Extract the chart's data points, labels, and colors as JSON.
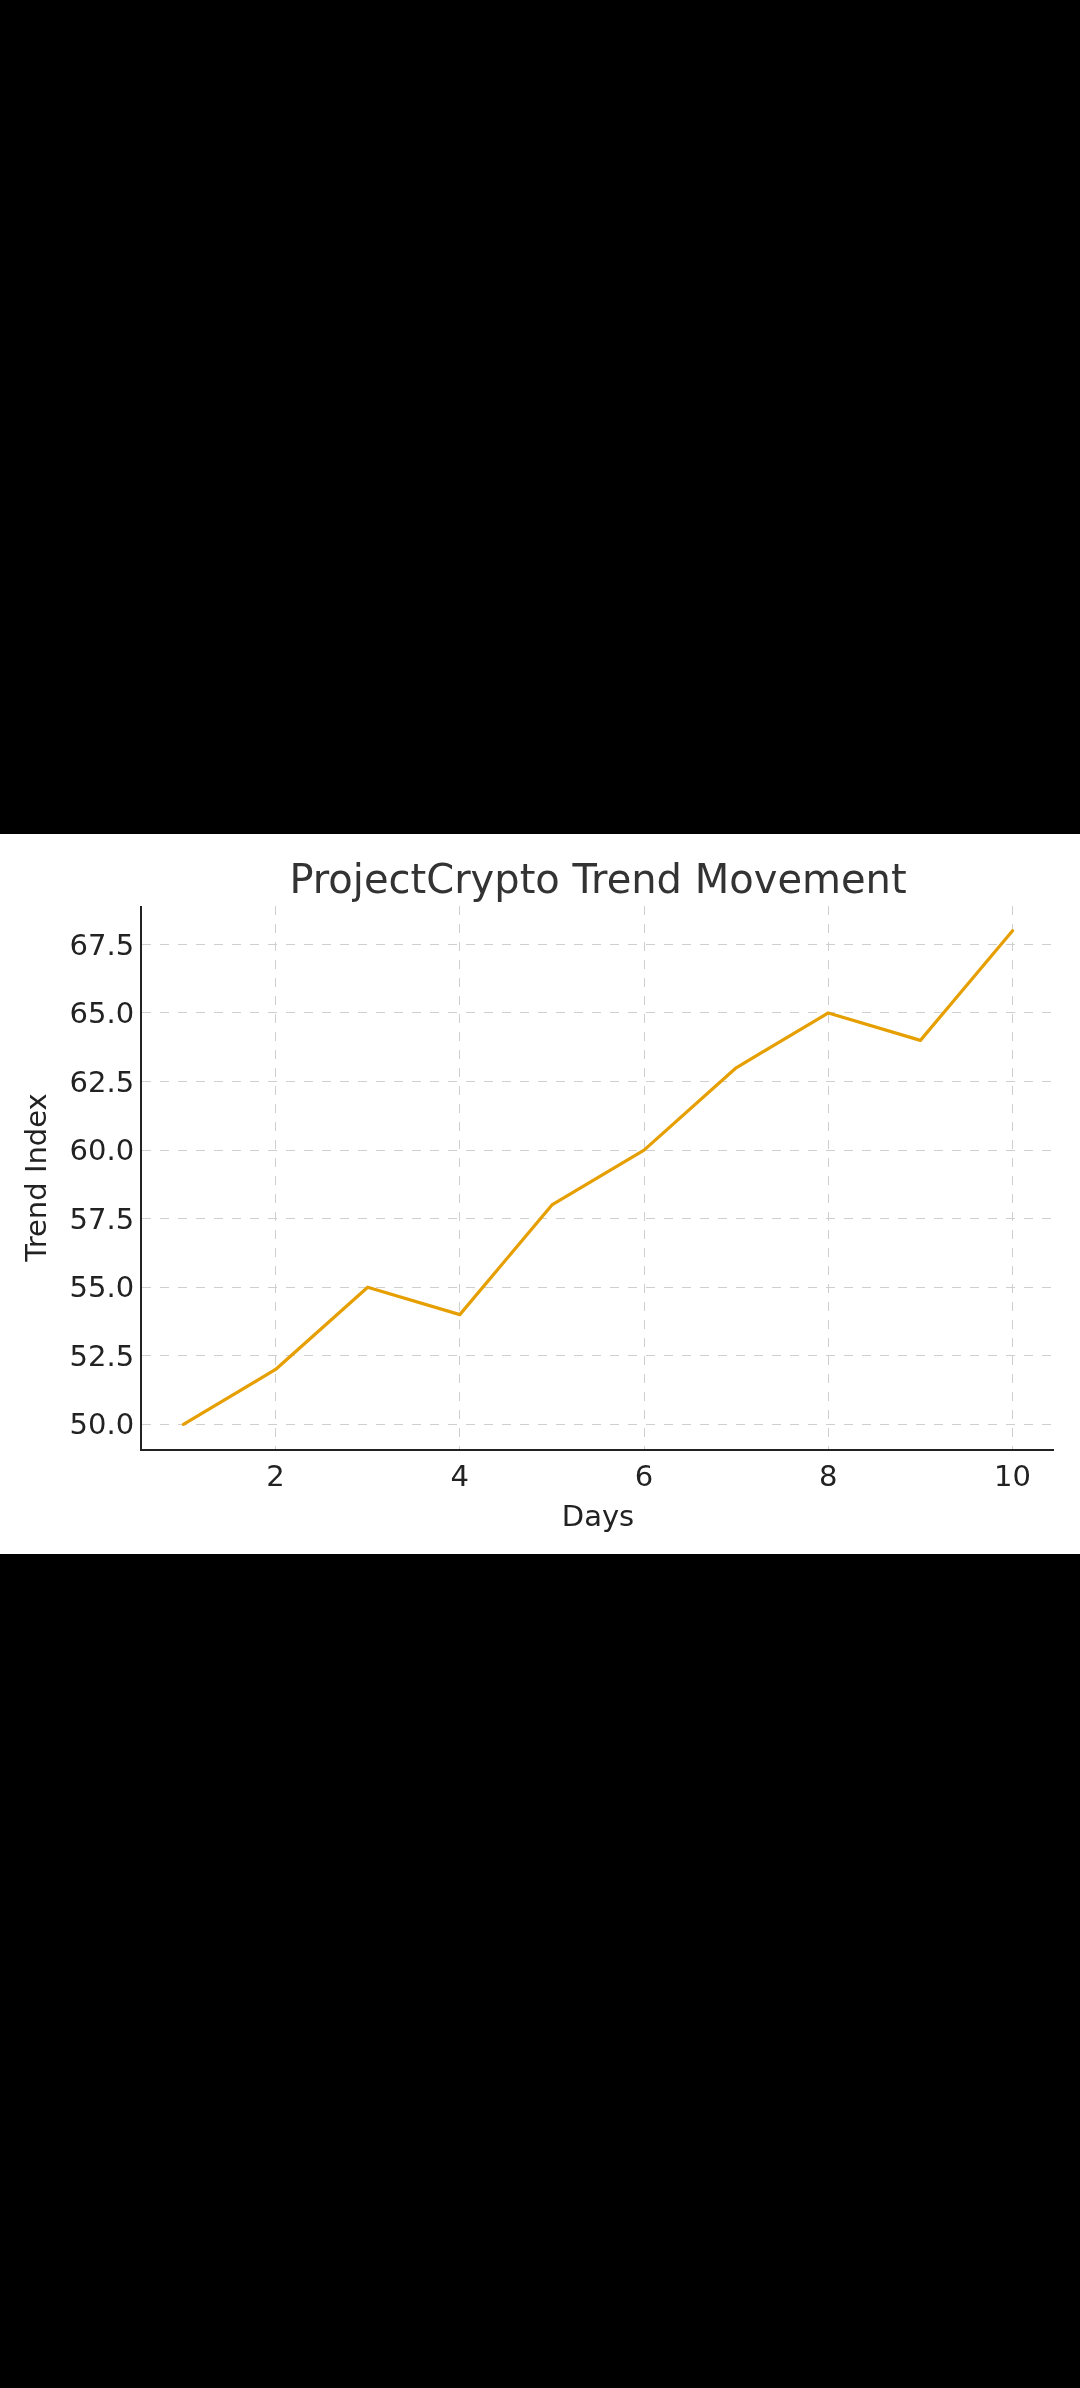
{
  "chart_data": {
    "type": "line",
    "title": "ProjectCrypto Trend Movement",
    "xlabel": "Days",
    "ylabel": "Trend Index",
    "x": [
      1,
      2,
      3,
      4,
      5,
      6,
      7,
      8,
      9,
      10
    ],
    "series": [
      {
        "color": "#e69f00",
        "values": [
          50,
          52,
          55,
          54,
          58,
          60,
          63,
          65,
          64,
          68
        ]
      }
    ],
    "xlim": [
      0.55,
      10.45
    ],
    "ylim": [
      49.1,
      68.9
    ],
    "xticks": [
      2,
      4,
      6,
      8,
      10
    ],
    "yticks": [
      {
        "value": 50,
        "label": "50.0"
      },
      {
        "value": 52.5,
        "label": "52.5"
      },
      {
        "value": 55,
        "label": "55.0"
      },
      {
        "value": 57.5,
        "label": "57.5"
      },
      {
        "value": 60,
        "label": "60.0"
      },
      {
        "value": 62.5,
        "label": "62.5"
      },
      {
        "value": 65,
        "label": "65.0"
      },
      {
        "value": 67.5,
        "label": "67.5"
      }
    ],
    "grid": true,
    "line_style": "solid"
  }
}
